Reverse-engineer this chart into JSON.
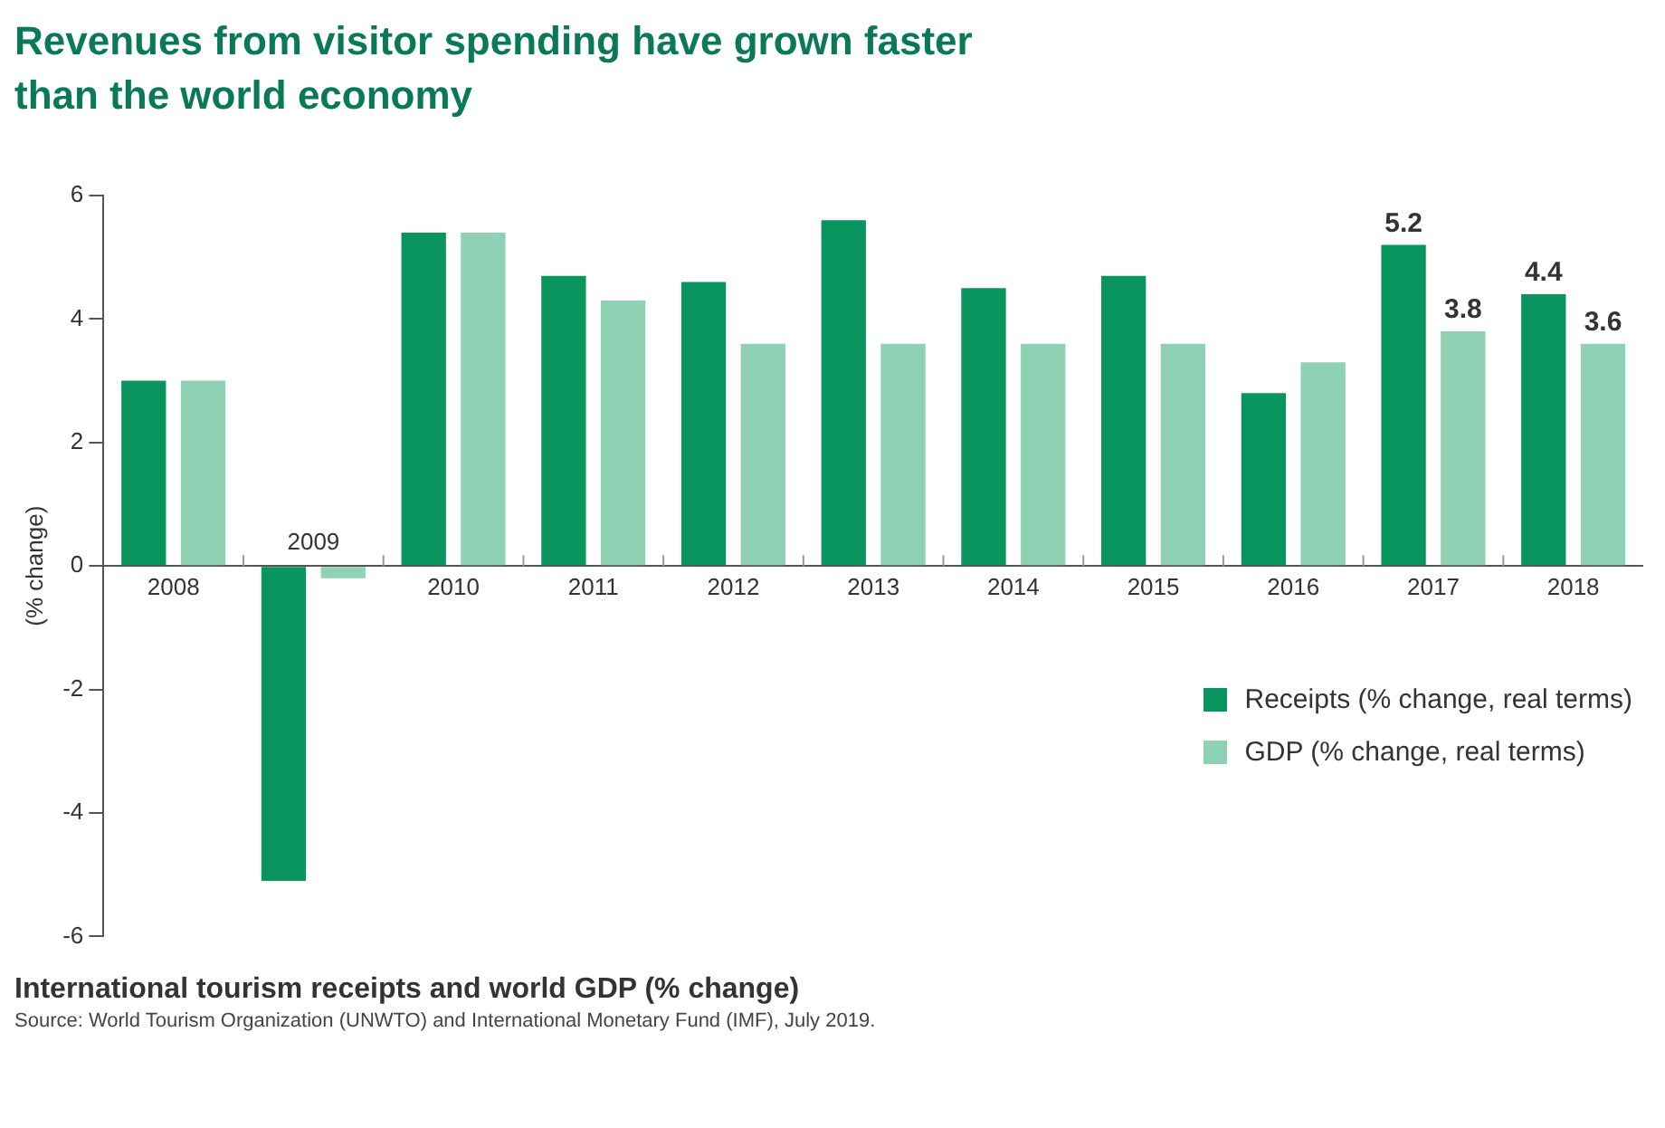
{
  "chart_data": {
    "type": "bar",
    "title": "Revenues from visitor spending have grown faster\nthan the world economy",
    "ylabel": "(% change)",
    "categories": [
      "2008",
      "2009",
      "2010",
      "2011",
      "2012",
      "2013",
      "2014",
      "2015",
      "2016",
      "2017",
      "2018"
    ],
    "series": [
      {
        "name": "Receipts (% change, real terms)",
        "color": "#0a9460",
        "values": [
          3.0,
          -5.1,
          5.4,
          4.7,
          4.6,
          5.6,
          4.5,
          4.7,
          2.8,
          5.2,
          4.4
        ],
        "value_labels": [
          null,
          null,
          null,
          null,
          null,
          null,
          null,
          null,
          null,
          "5.2",
          "4.4"
        ]
      },
      {
        "name": "GDP (% change, real terms)",
        "color": "#8fd1b5",
        "values": [
          3.0,
          -0.2,
          5.4,
          4.3,
          3.6,
          3.6,
          3.6,
          3.6,
          3.3,
          3.8,
          3.6
        ],
        "value_labels": [
          null,
          null,
          null,
          null,
          null,
          null,
          null,
          null,
          null,
          "3.8",
          "3.6"
        ]
      }
    ],
    "ylim": [
      -6,
      6
    ],
    "yticks": [
      -6,
      -4,
      -2,
      0,
      2,
      4,
      6
    ],
    "grid": false,
    "legend": "right",
    "annotations": [
      "International tourism receipts and world GDP (% change)",
      "Source: World Tourism Organization (UNWTO) and International Monetary Fund (IMF), July 2019."
    ]
  }
}
